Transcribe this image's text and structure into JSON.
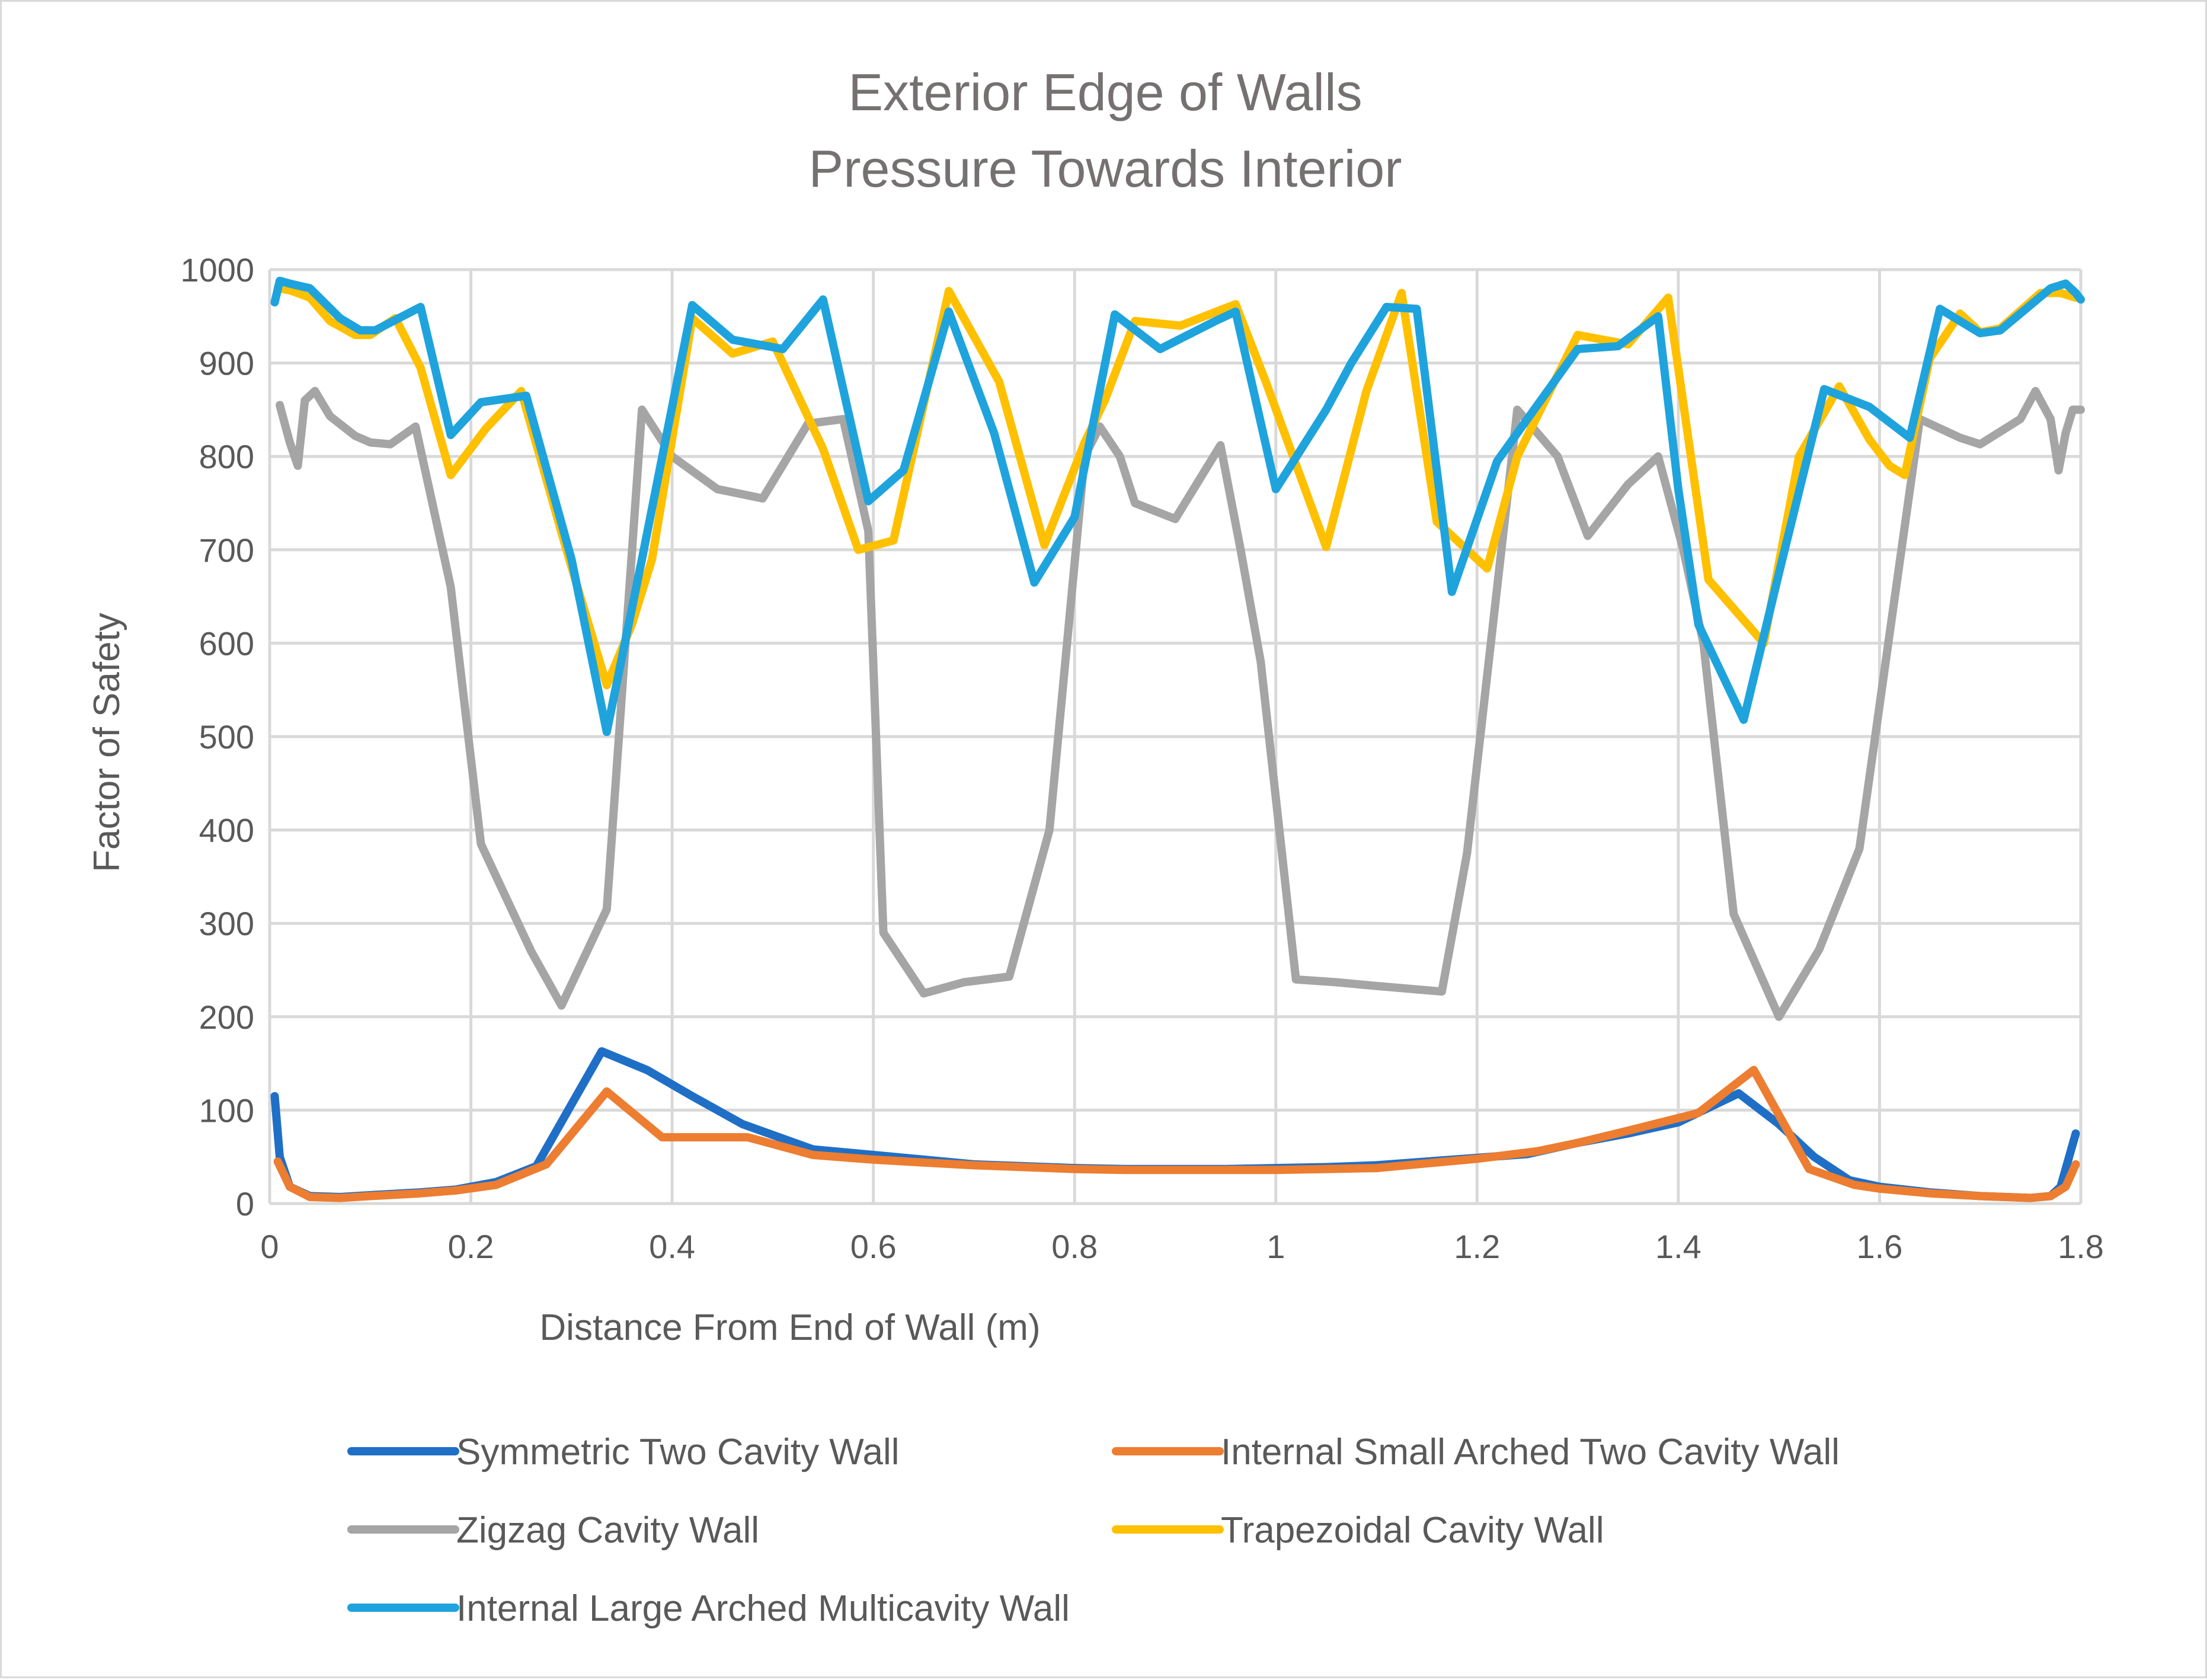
{
  "chart_data": {
    "type": "line",
    "title": [
      "Exterior Edge of Walls",
      "Pressure Towards Interior"
    ],
    "xlabel": "Distance From End of Wall (m)",
    "ylabel": "Factor of Safety",
    "xlim": [
      0,
      1.8
    ],
    "ylim": [
      0,
      1000
    ],
    "x_ticks": [
      0,
      0.2,
      0.4,
      0.6,
      0.8,
      1,
      1.2,
      1.4,
      1.6,
      1.8
    ],
    "x_tick_labels": [
      "0",
      "0.2",
      "0.4",
      "0.6",
      "0.8",
      "1",
      "1.2",
      "1.4",
      "1.6",
      "1.8"
    ],
    "y_ticks": [
      0,
      100,
      200,
      300,
      400,
      500,
      600,
      700,
      800,
      900,
      1000
    ],
    "y_tick_labels": [
      "0",
      "100",
      "200",
      "300",
      "400",
      "500",
      "600",
      "700",
      "800",
      "900",
      "1000"
    ],
    "grid": true,
    "legend_position": "bottom",
    "series": [
      {
        "name": "Symmetric Two Cavity Wall",
        "color": "#1f6fc6",
        "points": [
          [
            0.005,
            115
          ],
          [
            0.01,
            50
          ],
          [
            0.02,
            18
          ],
          [
            0.04,
            8
          ],
          [
            0.07,
            7
          ],
          [
            0.1,
            9
          ],
          [
            0.15,
            12
          ],
          [
            0.185,
            15
          ],
          [
            0.225,
            23
          ],
          [
            0.265,
            40
          ],
          [
            0.33,
            163
          ],
          [
            0.375,
            143
          ],
          [
            0.42,
            115
          ],
          [
            0.47,
            85
          ],
          [
            0.54,
            58
          ],
          [
            0.6,
            52
          ],
          [
            0.65,
            47
          ],
          [
            0.7,
            42
          ],
          [
            0.75,
            40
          ],
          [
            0.8,
            38
          ],
          [
            0.85,
            37
          ],
          [
            0.9,
            37
          ],
          [
            0.95,
            37
          ],
          [
            1.0,
            38
          ],
          [
            1.05,
            39
          ],
          [
            1.1,
            41
          ],
          [
            1.15,
            45
          ],
          [
            1.2,
            49
          ],
          [
            1.25,
            53
          ],
          [
            1.3,
            65
          ],
          [
            1.35,
            75
          ],
          [
            1.4,
            87
          ],
          [
            1.46,
            118
          ],
          [
            1.5,
            85
          ],
          [
            1.535,
            50
          ],
          [
            1.57,
            25
          ],
          [
            1.6,
            18
          ],
          [
            1.65,
            12
          ],
          [
            1.7,
            8
          ],
          [
            1.75,
            6
          ],
          [
            1.77,
            8
          ],
          [
            1.78,
            18
          ],
          [
            1.795,
            75
          ]
        ]
      },
      {
        "name": "Internal Small Arched Two Cavity Wall",
        "color": "#ed7d31",
        "points": [
          [
            0.008,
            45
          ],
          [
            0.02,
            18
          ],
          [
            0.04,
            7
          ],
          [
            0.07,
            6
          ],
          [
            0.1,
            8
          ],
          [
            0.15,
            11
          ],
          [
            0.185,
            14
          ],
          [
            0.225,
            20
          ],
          [
            0.275,
            42
          ],
          [
            0.335,
            120
          ],
          [
            0.39,
            71
          ],
          [
            0.43,
            71
          ],
          [
            0.475,
            71
          ],
          [
            0.54,
            52
          ],
          [
            0.6,
            47
          ],
          [
            0.65,
            44
          ],
          [
            0.7,
            41
          ],
          [
            0.75,
            39
          ],
          [
            0.8,
            37
          ],
          [
            0.85,
            36
          ],
          [
            0.9,
            36
          ],
          [
            0.95,
            36
          ],
          [
            1.0,
            36
          ],
          [
            1.05,
            37
          ],
          [
            1.1,
            38
          ],
          [
            1.15,
            43
          ],
          [
            1.2,
            48
          ],
          [
            1.26,
            56
          ],
          [
            1.3,
            65
          ],
          [
            1.35,
            78
          ],
          [
            1.42,
            97
          ],
          [
            1.475,
            143
          ],
          [
            1.53,
            37
          ],
          [
            1.575,
            20
          ],
          [
            1.6,
            16
          ],
          [
            1.65,
            11
          ],
          [
            1.7,
            8
          ],
          [
            1.75,
            6
          ],
          [
            1.77,
            8
          ],
          [
            1.785,
            18
          ],
          [
            1.795,
            42
          ]
        ]
      },
      {
        "name": "Zigzag Cavity Wall",
        "color": "#a5a5a5",
        "points": [
          [
            0.01,
            855
          ],
          [
            0.02,
            815
          ],
          [
            0.028,
            790
          ],
          [
            0.035,
            860
          ],
          [
            0.045,
            870
          ],
          [
            0.06,
            843
          ],
          [
            0.085,
            822
          ],
          [
            0.1,
            815
          ],
          [
            0.12,
            813
          ],
          [
            0.145,
            832
          ],
          [
            0.18,
            660
          ],
          [
            0.21,
            385
          ],
          [
            0.26,
            270
          ],
          [
            0.29,
            212
          ],
          [
            0.335,
            315
          ],
          [
            0.37,
            850
          ],
          [
            0.4,
            800
          ],
          [
            0.445,
            765
          ],
          [
            0.49,
            755
          ],
          [
            0.535,
            835
          ],
          [
            0.57,
            840
          ],
          [
            0.595,
            720
          ],
          [
            0.61,
            290
          ],
          [
            0.65,
            225
          ],
          [
            0.69,
            237
          ],
          [
            0.735,
            243
          ],
          [
            0.775,
            400
          ],
          [
            0.81,
            800
          ],
          [
            0.825,
            832
          ],
          [
            0.845,
            800
          ],
          [
            0.86,
            750
          ],
          [
            0.9,
            733
          ],
          [
            0.945,
            812
          ],
          [
            0.965,
            700
          ],
          [
            0.985,
            580
          ],
          [
            1.02,
            240
          ],
          [
            1.06,
            237
          ],
          [
            1.1,
            233
          ],
          [
            1.165,
            227
          ],
          [
            1.19,
            375
          ],
          [
            1.24,
            850
          ],
          [
            1.28,
            800
          ],
          [
            1.31,
            715
          ],
          [
            1.35,
            770
          ],
          [
            1.38,
            800
          ],
          [
            1.405,
            700
          ],
          [
            1.425,
            600
          ],
          [
            1.455,
            310
          ],
          [
            1.5,
            200
          ],
          [
            1.54,
            272
          ],
          [
            1.58,
            380
          ],
          [
            1.64,
            840
          ],
          [
            1.68,
            820
          ],
          [
            1.7,
            813
          ],
          [
            1.74,
            840
          ],
          [
            1.755,
            870
          ],
          [
            1.77,
            840
          ],
          [
            1.778,
            785
          ],
          [
            1.785,
            825
          ],
          [
            1.792,
            850
          ],
          [
            1.8,
            850
          ]
        ]
      },
      {
        "name": "Trapezoidal Cavity Wall",
        "color": "#ffc000",
        "points": [
          [
            0.008,
            980
          ],
          [
            0.02,
            978
          ],
          [
            0.04,
            970
          ],
          [
            0.06,
            945
          ],
          [
            0.085,
            930
          ],
          [
            0.1,
            930
          ],
          [
            0.125,
            948
          ],
          [
            0.15,
            895
          ],
          [
            0.18,
            780
          ],
          [
            0.215,
            830
          ],
          [
            0.25,
            870
          ],
          [
            0.295,
            700
          ],
          [
            0.335,
            555
          ],
          [
            0.36,
            620
          ],
          [
            0.38,
            690
          ],
          [
            0.42,
            948
          ],
          [
            0.46,
            910
          ],
          [
            0.5,
            923
          ],
          [
            0.55,
            808
          ],
          [
            0.585,
            700
          ],
          [
            0.62,
            710
          ],
          [
            0.675,
            977
          ],
          [
            0.725,
            880
          ],
          [
            0.77,
            705
          ],
          [
            0.81,
            815
          ],
          [
            0.83,
            860
          ],
          [
            0.86,
            945
          ],
          [
            0.905,
            940
          ],
          [
            0.96,
            963
          ],
          [
            0.99,
            880
          ],
          [
            1.05,
            703
          ],
          [
            1.09,
            870
          ],
          [
            1.125,
            975
          ],
          [
            1.16,
            730
          ],
          [
            1.21,
            680
          ],
          [
            1.24,
            800
          ],
          [
            1.3,
            930
          ],
          [
            1.35,
            920
          ],
          [
            1.39,
            970
          ],
          [
            1.43,
            668
          ],
          [
            1.485,
            600
          ],
          [
            1.52,
            800
          ],
          [
            1.56,
            875
          ],
          [
            1.59,
            818
          ],
          [
            1.61,
            790
          ],
          [
            1.625,
            780
          ],
          [
            1.65,
            905
          ],
          [
            1.68,
            953
          ],
          [
            1.7,
            933
          ],
          [
            1.72,
            937
          ],
          [
            1.76,
            975
          ],
          [
            1.78,
            975
          ],
          [
            1.795,
            970
          ]
        ]
      },
      {
        "name": "Internal Large Arched Multicavity Wall",
        "color": "#1fa3dd",
        "points": [
          [
            0.005,
            965
          ],
          [
            0.01,
            988
          ],
          [
            0.02,
            985
          ],
          [
            0.04,
            980
          ],
          [
            0.07,
            948
          ],
          [
            0.09,
            935
          ],
          [
            0.105,
            935
          ],
          [
            0.15,
            960
          ],
          [
            0.18,
            823
          ],
          [
            0.21,
            858
          ],
          [
            0.255,
            865
          ],
          [
            0.3,
            690
          ],
          [
            0.335,
            505
          ],
          [
            0.37,
            690
          ],
          [
            0.42,
            962
          ],
          [
            0.46,
            925
          ],
          [
            0.51,
            915
          ],
          [
            0.55,
            968
          ],
          [
            0.595,
            752
          ],
          [
            0.63,
            785
          ],
          [
            0.675,
            955
          ],
          [
            0.72,
            825
          ],
          [
            0.76,
            665
          ],
          [
            0.8,
            735
          ],
          [
            0.84,
            952
          ],
          [
            0.885,
            915
          ],
          [
            0.94,
            945
          ],
          [
            0.96,
            955
          ],
          [
            1.0,
            765
          ],
          [
            1.05,
            850
          ],
          [
            1.075,
            900
          ],
          [
            1.11,
            960
          ],
          [
            1.14,
            958
          ],
          [
            1.175,
            655
          ],
          [
            1.22,
            795
          ],
          [
            1.25,
            840
          ],
          [
            1.3,
            915
          ],
          [
            1.34,
            918
          ],
          [
            1.38,
            950
          ],
          [
            1.4,
            765
          ],
          [
            1.42,
            620
          ],
          [
            1.465,
            518
          ],
          [
            1.5,
            675
          ],
          [
            1.545,
            872
          ],
          [
            1.59,
            853
          ],
          [
            1.63,
            820
          ],
          [
            1.66,
            958
          ],
          [
            1.7,
            932
          ],
          [
            1.72,
            935
          ],
          [
            1.77,
            980
          ],
          [
            1.785,
            985
          ],
          [
            1.795,
            975
          ],
          [
            1.8,
            968
          ]
        ]
      }
    ]
  }
}
